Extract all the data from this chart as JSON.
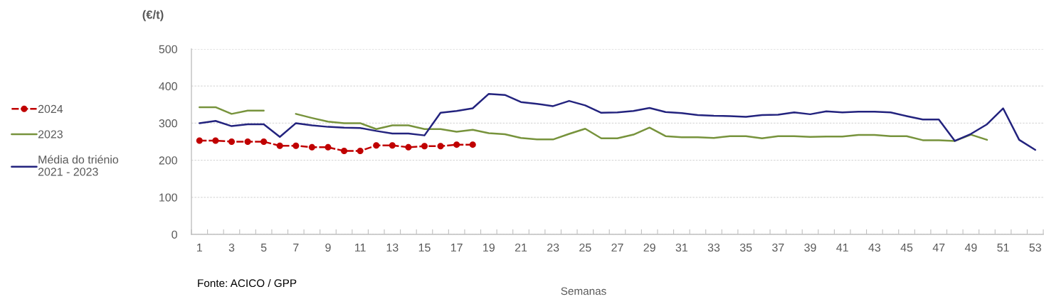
{
  "chart_data": {
    "type": "line",
    "ylabel": "(€/t)",
    "xlabel": "Semanas",
    "annotations": [
      "Fonte: ACICO / GPP"
    ],
    "categories": [
      "1",
      null,
      "3",
      null,
      "5",
      null,
      "7",
      null,
      "9",
      null,
      "11",
      null,
      "13",
      null,
      "15",
      null,
      "17",
      null,
      "19",
      null,
      "21",
      null,
      "23",
      null,
      "25",
      null,
      "27",
      null,
      "29",
      null,
      "31",
      null,
      "33",
      null,
      "35",
      null,
      "37",
      null,
      "39",
      null,
      "41",
      null,
      "43",
      null,
      "45",
      null,
      "47",
      null,
      "49",
      null,
      "51",
      null,
      "53"
    ],
    "ylim": [
      0,
      500
    ],
    "yticks": [
      0,
      100,
      200,
      300,
      400,
      500
    ],
    "grid": "y",
    "legend": "left",
    "series": [
      {
        "name": "2024",
        "color": "#c00000",
        "marker": "circle",
        "line_style": "dashed",
        "values": [
          253,
          253,
          250,
          250,
          250,
          239,
          239,
          235,
          235,
          225,
          225,
          240,
          240,
          235,
          238,
          238,
          242,
          242,
          null,
          null,
          null,
          null,
          null,
          null,
          null,
          null,
          null,
          null,
          null,
          null,
          null,
          null,
          null,
          null,
          null,
          null,
          null,
          null,
          null,
          null,
          null,
          null,
          null,
          null,
          null,
          null,
          null,
          null,
          null,
          null,
          null,
          null,
          null
        ]
      },
      {
        "name": "2023",
        "color": "#77933c",
        "marker": "none",
        "line_style": "solid",
        "values": [
          343,
          343,
          325,
          334,
          334,
          null,
          325,
          314,
          304,
          300,
          300,
          284,
          294,
          294,
          284,
          284,
          277,
          282,
          273,
          270,
          260,
          256,
          256,
          271,
          285,
          259,
          259,
          269,
          288,
          265,
          262,
          262,
          260,
          265,
          265,
          259,
          265,
          265,
          263,
          264,
          264,
          268,
          268,
          265,
          265,
          254,
          254,
          252,
          269,
          255,
          null,
          null,
          null
        ]
      },
      {
        "name": "Média do triénio\n2021 - 2023",
        "color": "#23237e",
        "marker": "none",
        "line_style": "solid",
        "values": [
          300,
          306,
          292,
          297,
          297,
          263,
          300,
          294,
          290,
          288,
          287,
          279,
          272,
          272,
          267,
          328,
          333,
          340,
          379,
          376,
          357,
          352,
          346,
          360,
          348,
          328,
          329,
          333,
          341,
          330,
          327,
          322,
          320,
          319,
          317,
          322,
          323,
          329,
          324,
          332,
          329,
          331,
          331,
          329,
          319,
          310,
          310,
          252,
          271,
          297,
          340,
          255,
          228
        ]
      }
    ]
  }
}
